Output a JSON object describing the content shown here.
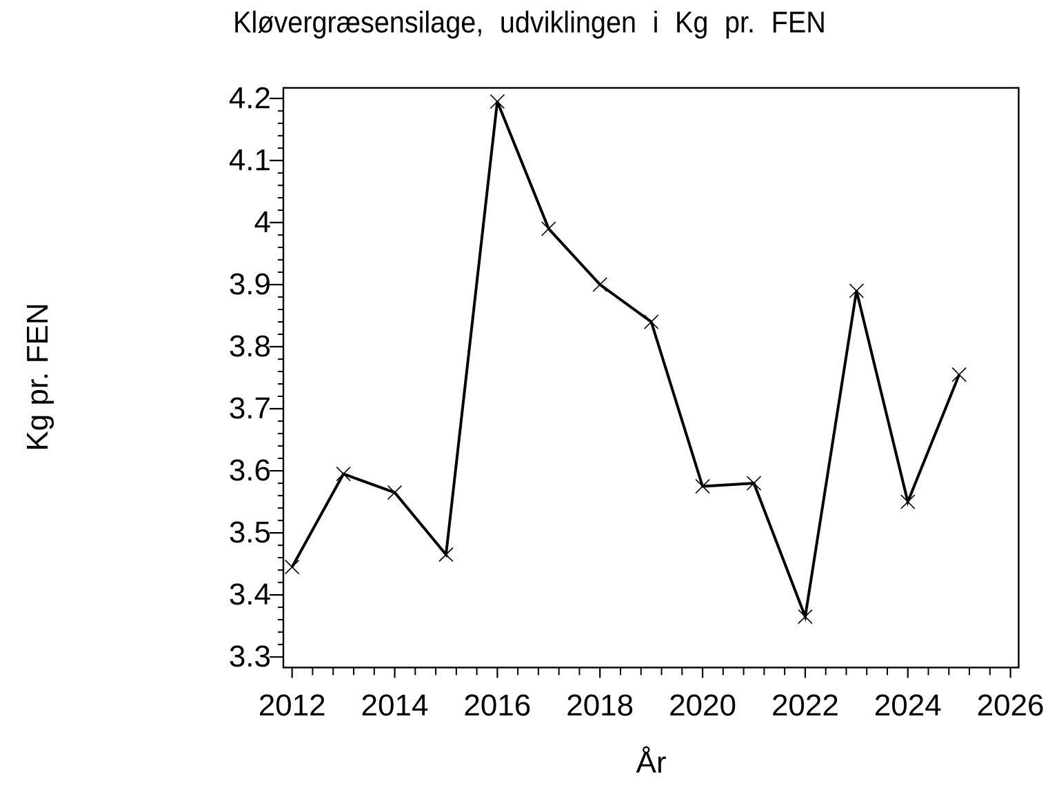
{
  "chart_data": {
    "type": "line",
    "title": "Kløvergræsensilage, udviklingen i Kg pr. FEN",
    "xlabel": "År",
    "ylabel": "Kg pr. FEN",
    "series_name": "Kg pr. FEN",
    "x": [
      2012,
      2013,
      2014,
      2015,
      2016,
      2017,
      2018,
      2019,
      2020,
      2021,
      2022,
      2023,
      2024,
      2025
    ],
    "values": [
      3.445,
      3.595,
      3.565,
      3.465,
      4.195,
      3.99,
      3.9,
      3.84,
      3.575,
      3.58,
      3.365,
      3.89,
      3.55,
      3.755
    ],
    "x_ticks": [
      {
        "value": 2012,
        "label": "2012"
      },
      {
        "value": 2014,
        "label": "2014"
      },
      {
        "value": 2016,
        "label": "2016"
      },
      {
        "value": 2018,
        "label": "2018"
      },
      {
        "value": 2020,
        "label": "2020"
      },
      {
        "value": 2022,
        "label": "2022"
      },
      {
        "value": 2024,
        "label": "2024"
      },
      {
        "value": 2026,
        "label": "2026"
      }
    ],
    "y_ticks": [
      {
        "value": 4.2,
        "label": "4.2"
      },
      {
        "value": 4.1,
        "label": "4.1"
      },
      {
        "value": 4.0,
        "label": "4"
      },
      {
        "value": 3.9,
        "label": "3.9"
      },
      {
        "value": 3.8,
        "label": "3.8"
      },
      {
        "value": 3.7,
        "label": "3.7"
      },
      {
        "value": 3.6,
        "label": "3.6"
      },
      {
        "value": 3.5,
        "label": "3.5"
      },
      {
        "value": 3.4,
        "label": "3.4"
      },
      {
        "value": 3.3,
        "label": "3.3"
      }
    ],
    "x_minor_step": 0.4,
    "y_minor_step": 0.02,
    "xlim": [
      2011.83,
      2026.16
    ],
    "ylim": [
      3.283,
      4.217
    ],
    "grid": false,
    "legend": "none",
    "marker": "x",
    "line_color": "#000000",
    "background_color": "#ffffff"
  }
}
